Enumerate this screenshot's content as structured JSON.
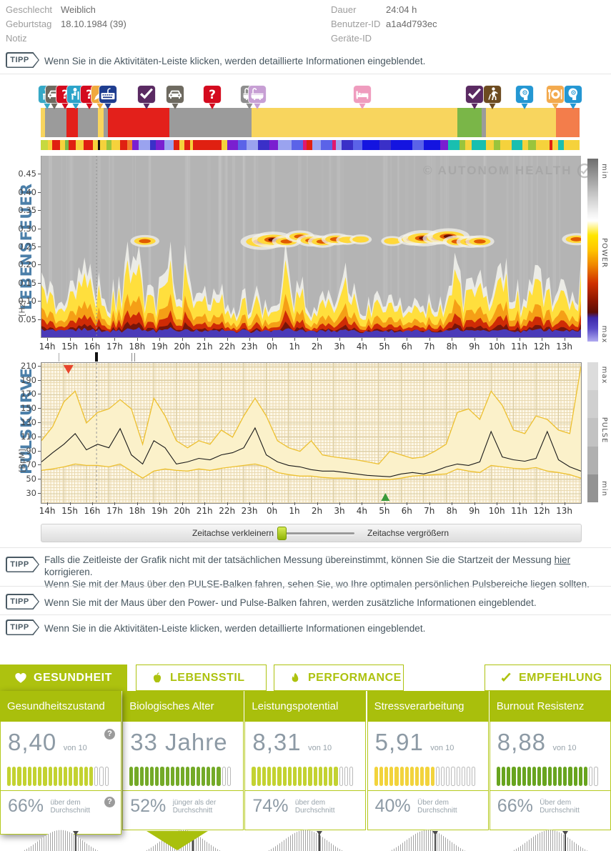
{
  "header": {
    "left": [
      {
        "label": "Geschlecht",
        "value": "Weiblich"
      },
      {
        "label": "Geburtstag",
        "value": "18.10.1984 (39)"
      },
      {
        "label": "Notiz",
        "value": ""
      }
    ],
    "right": [
      {
        "label": "Dauer",
        "value": "24:04 h"
      },
      {
        "label": "Benutzer-ID",
        "value": "a1a4d793ec"
      },
      {
        "label": "Geräte-ID",
        "value": ""
      }
    ]
  },
  "tips": {
    "badge": "TIPP",
    "top": "Wenn Sie in die Aktivitäten-Leiste klicken, werden detaillierte Informationen eingeblendet.",
    "timeline_before": "Falls die Zeitleiste der Grafik nicht mit der tatsächlichen Messung übereinstimmt, können Sie die Startzeit der Messung ",
    "timeline_link": "hier",
    "timeline_after": " korrigieren.",
    "timeline_line2": "Wenn Sie mit der Maus über den PULSE-Balken fahren, sehen Sie, wo Ihre optimalen persönlichen Pulsbereiche liegen sollten.",
    "hover_bars": "Wenn Sie mit der Maus über den Power- und Pulse-Balken fahren, werden zusätzliche Informationen eingeblendet.",
    "activities": "Wenn Sie in die Aktivitäten-Leiste klicken, werden detaillierte Informationen eingeblendet."
  },
  "watermark": "© AUTONOM HEALTH",
  "slider": {
    "shrink_label": "Zeitachse verkleinern",
    "grow_label": "Zeitachse vergrößern"
  },
  "activities": {
    "pins": [
      {
        "icon": "person-desk",
        "color": "#35a8c6",
        "x": -4
      },
      {
        "icon": "car",
        "color": "#6e6a60",
        "x": 6
      },
      {
        "icon": "question",
        "color": "#d40a1e",
        "x": 21
      },
      {
        "icon": "person-desk",
        "color": "#2ba3c9",
        "x": 36
      },
      {
        "icon": "question",
        "color": "#d40a1e",
        "x": 55
      },
      {
        "icon": "pen",
        "color": "#f0a93e",
        "x": 70
      },
      {
        "icon": "keyboard",
        "color": "#1e3d8f",
        "x": 81
      },
      {
        "icon": "relax",
        "color": "#5a2a62",
        "x": 135
      },
      {
        "icon": "car",
        "color": "#6e6a60",
        "x": 175
      },
      {
        "icon": "question",
        "color": "#d40a1e",
        "x": 227
      },
      {
        "icon": "bath",
        "color": "#8d8d8d",
        "x": 279
      },
      {
        "icon": "bath",
        "color": "#c79fd4",
        "x": 290
      },
      {
        "icon": "bed",
        "color": "#ef9cbe",
        "x": 437
      },
      {
        "icon": "relax",
        "color": "#5a2a62",
        "x": 594
      },
      {
        "icon": "hiker",
        "color": "#6d4b20",
        "x": 619
      },
      {
        "icon": "head-gear",
        "color": "#2497d3",
        "x": 664
      },
      {
        "icon": "meal",
        "color": "#f3aa4e",
        "x": 707
      },
      {
        "icon": "head-gear",
        "color": "#2497d3",
        "x": 732
      }
    ],
    "bar_segments": [
      {
        "color": "#f8d55e",
        "w": 0.8
      },
      {
        "color": "#9b9b9b",
        "w": 4.0
      },
      {
        "color": "#e3201b",
        "w": 2.1
      },
      {
        "color": "#9b9b9b",
        "w": 3.7
      },
      {
        "color": "#f8d55e",
        "w": 1.1
      },
      {
        "color": "#9b9b9b",
        "w": 0.7
      },
      {
        "color": "#e3201b",
        "w": 11.5
      },
      {
        "color": "#9b9b9b",
        "w": 15.2
      },
      {
        "color": "#f8d55e",
        "w": 38.1
      },
      {
        "color": "#7ab648",
        "w": 4.6
      },
      {
        "color": "#9b9b9b",
        "w": 0.7
      },
      {
        "color": "#f8d55e",
        "w": 13.0
      },
      {
        "color": "#f37d4b",
        "w": 4.4
      }
    ],
    "strip_segments": [
      [
        "#c6d93f",
        1.2
      ],
      [
        "#f5d23c",
        0.8
      ],
      [
        "#e02011",
        1.4
      ],
      [
        "#f5d23c",
        0.8
      ],
      [
        "#7ab648",
        0.7
      ],
      [
        "#e02011",
        1.2
      ],
      [
        "#f5d23c",
        1.4
      ],
      [
        "#e02011",
        1.6
      ],
      [
        "#f5d23c",
        0.9
      ],
      [
        "#111111",
        0.4
      ],
      [
        "#f5d23c",
        1.1
      ],
      [
        "#9ac43c",
        0.9
      ],
      [
        "#f5d23c",
        1.5
      ],
      [
        "#e02011",
        1.3
      ],
      [
        "#f07f2e",
        0.8
      ],
      [
        "#7a1fd0",
        1.2
      ],
      [
        "#9aa3ef",
        2.0
      ],
      [
        "#3a30c8",
        1.0
      ],
      [
        "#7a1fd0",
        1.5
      ],
      [
        "#9aa3ef",
        1.6
      ],
      [
        "#e02011",
        1.0
      ],
      [
        "#f5d23c",
        0.8
      ],
      [
        "#e02011",
        1.0
      ],
      [
        "#f5d23c",
        0.6
      ],
      [
        "#e02011",
        5.0
      ],
      [
        "#f5d23c",
        1.0
      ],
      [
        "#7a1fd0",
        1.8
      ],
      [
        "#5b63e8",
        1.5
      ],
      [
        "#9aa3ef",
        2.0
      ],
      [
        "#3a30c8",
        2.0
      ],
      [
        "#7a1fd0",
        1.5
      ],
      [
        "#9aa3ef",
        2.4
      ],
      [
        "#5b63e8",
        2.0
      ],
      [
        "#e0186e",
        0.7
      ],
      [
        "#e02011",
        1.0
      ],
      [
        "#9aa3ef",
        1.5
      ],
      [
        "#5b63e8",
        2.0
      ],
      [
        "#e0186e",
        0.6
      ],
      [
        "#9aa3ef",
        1.0
      ],
      [
        "#3a30c8",
        2.0
      ],
      [
        "#5b63e8",
        1.6
      ],
      [
        "#1414e0",
        3.0
      ],
      [
        "#3a30c8",
        2.0
      ],
      [
        "#1414e0",
        3.8
      ],
      [
        "#5b63e8",
        2.0
      ],
      [
        "#1414e0",
        2.8
      ],
      [
        "#7a1fd0",
        1.4
      ],
      [
        "#19bfb0",
        2.0
      ],
      [
        "#9ac43c",
        1.0
      ],
      [
        "#f5d23c",
        1.2
      ],
      [
        "#19bfb0",
        2.4
      ],
      [
        "#f5d23c",
        1.4
      ],
      [
        "#9ac43c",
        1.2
      ],
      [
        "#f5d23c",
        2.0
      ],
      [
        "#19bfb0",
        1.8
      ],
      [
        "#f5d23c",
        1.0
      ],
      [
        "#9ac43c",
        1.4
      ],
      [
        "#f5d23c",
        2.4
      ],
      [
        "#e02011",
        0.5
      ],
      [
        "#f5d23c",
        1.0
      ],
      [
        "#19bfb0",
        1.0
      ],
      [
        "#f5d23c",
        2.8
      ]
    ]
  },
  "tabs": [
    {
      "label": "GESUNDHEIT",
      "icon": "heart",
      "active": true
    },
    {
      "label": "LEBENSSTIL",
      "icon": "apple",
      "active": false
    },
    {
      "label": "PERFORMANCE",
      "icon": "flame",
      "active": false
    },
    {
      "label": "EMPFEHLUNG",
      "icon": "check",
      "active": false
    }
  ],
  "cards": [
    {
      "title": "Gesundheitszustand",
      "value": "8,40",
      "unit": "von 10",
      "bars_total": 20,
      "bars_filled": 17,
      "bar_color": "#c3d231",
      "percent": "66%",
      "percent_label_1": "über dem",
      "percent_label_2": "Durchschnitt",
      "marker_pct": 63,
      "active": true,
      "help_icons": true
    },
    {
      "title": "Biologisches Alter",
      "value": "33 Jahre",
      "unit": "",
      "bars_total": 20,
      "bars_filled": 18,
      "bar_color": "#74aa28",
      "percent": "52%",
      "percent_label_1": "jünger als der",
      "percent_label_2": "Durchschnitt",
      "marker_pct": 58,
      "active": false,
      "help_icons": false
    },
    {
      "title": "Leistungspotential",
      "value": "8,31",
      "unit": "von 10",
      "bars_total": 20,
      "bars_filled": 17,
      "bar_color": "#c3d231",
      "percent": "74%",
      "percent_label_1": "über dem",
      "percent_label_2": "Durchschnitt",
      "marker_pct": 62,
      "active": false,
      "help_icons": false
    },
    {
      "title": "Stressverarbeitung",
      "value": "5,91",
      "unit": "von 10",
      "bars_total": 20,
      "bars_filled": 12,
      "bar_color": "#f2d33c",
      "percent": "40%",
      "percent_label_1": "Über dem",
      "percent_label_2": "Durchschnitt",
      "marker_pct": 56,
      "active": false,
      "help_icons": false
    },
    {
      "title": "Burnout Resistenz",
      "value": "8,88",
      "unit": "von 10",
      "bars_total": 20,
      "bars_filled": 18,
      "bar_color": "#68a41f",
      "percent": "66%",
      "percent_label_1": "Über dem",
      "percent_label_2": "Durchschnitt",
      "marker_pct": 63,
      "active": false,
      "help_icons": false
    }
  ],
  "chart_data": [
    {
      "type": "heatmap",
      "title": "LEBENSFEUER",
      "ylabel": "[Hz]",
      "yticks": [
        0.45,
        0.4,
        0.35,
        0.3,
        0.25,
        0.2,
        0.15,
        0.1,
        0.05
      ],
      "ylim": [
        0,
        0.5
      ],
      "xtick_labels": [
        "14h",
        "15h",
        "16h",
        "17h",
        "18h",
        "19h",
        "20h",
        "21h",
        "22h",
        "23h",
        "0h",
        "1h",
        "2h",
        "3h",
        "4h",
        "5h",
        "6h",
        "7h",
        "8h",
        "9h",
        "10h",
        "11h",
        "12h",
        "13h"
      ],
      "background": "#b4b4b4",
      "colorbar": {
        "top_label": "min",
        "mid_label": "POWER",
        "bottom_label": "max",
        "gradient": [
          "#6e6e6e 0%",
          "#c8c8c8 20%",
          "#f2f2f2 30%",
          "#ffffff 34%",
          "#ffe600 42%",
          "#ffc400 50%",
          "#f08800 58%",
          "#d03000 68%",
          "#8a1500 78%",
          "#5c0d06 84%",
          "#3c28aa 87%",
          "#5a4cc8 93%",
          "#b0aaf0 100%"
        ]
      },
      "sample_step_h": 0.5,
      "low_band_intensity": [
        0.26,
        0.2,
        0.17,
        0.24,
        0.3,
        0.22,
        0.18,
        0.26,
        0.32,
        0.24,
        0.2,
        0.27,
        0.22,
        0.3,
        0.24,
        0.17,
        0.21,
        0.14,
        0.17,
        0.21,
        0.15,
        0.12,
        0.19,
        0.24,
        0.14,
        0.21,
        0.17,
        0.24,
        0.19,
        0.14,
        0.21,
        0.17,
        0.19,
        0.24,
        0.17,
        0.14,
        0.24,
        0.29,
        0.21,
        0.27,
        0.19,
        0.29,
        0.24,
        0.19,
        0.27,
        0.21,
        0.24,
        0.19,
        0.23
      ],
      "mid_band": {
        "freq_hz": 0.27,
        "clusters": [
          {
            "hour": 18.6,
            "s": 1
          },
          {
            "hour": 23.8,
            "s": 2
          },
          {
            "hour": 0.3,
            "s": 2
          },
          {
            "hour": 0.9,
            "s": 1
          },
          {
            "hour": 1.5,
            "s": 1
          },
          {
            "hour": 2.0,
            "s": 1
          },
          {
            "hour": 2.5,
            "s": 1
          },
          {
            "hour": 3.1,
            "s": 1
          },
          {
            "hour": 3.6,
            "s": 0.5
          },
          {
            "hour": 4.2,
            "s": 0.5
          },
          {
            "hour": 5.6,
            "s": 0.5
          },
          {
            "hour": 6.5,
            "s": 1
          },
          {
            "hour": 7.0,
            "s": 2
          },
          {
            "hour": 7.6,
            "s": 1
          },
          {
            "hour": 8.1,
            "s": 2
          },
          {
            "hour": 8.5,
            "s": 1
          },
          {
            "hour": 9.1,
            "s": 1
          },
          {
            "hour": 9.5,
            "s": 1
          },
          {
            "hour": 13.8,
            "s": 1
          }
        ]
      },
      "dashed_line_hour": 16.45
    },
    {
      "type": "line",
      "title": "PULSKURVE",
      "ylabel": "[BpM]",
      "yticks": [
        210,
        190,
        170,
        150,
        130,
        110,
        90,
        70,
        50,
        30
      ],
      "ylim": [
        25,
        215
      ],
      "xtick_labels": [
        "14h",
        "15h",
        "16h",
        "17h",
        "18h",
        "19h",
        "20h",
        "21h",
        "22h",
        "23h",
        "0h",
        "1h",
        "2h",
        "3h",
        "4h",
        "5h",
        "6h",
        "7h",
        "8h",
        "9h",
        "10h",
        "11h",
        "12h",
        "13h"
      ],
      "sample_step_h": 0.5,
      "band_fill": "#fbf1ca",
      "series": [
        {
          "name": "max",
          "color": "#edc02f",
          "values": [
            105,
            125,
            160,
            175,
            130,
            145,
            150,
            163,
            150,
            100,
            165,
            140,
            105,
            95,
            105,
            100,
            120,
            110,
            140,
            165,
            140,
            105,
            95,
            90,
            105,
            85,
            82,
            80,
            78,
            75,
            72,
            90,
            85,
            80,
            82,
            90,
            100,
            145,
            150,
            135,
            175,
            155,
            120,
            115,
            140,
            135,
            120,
            115,
            210
          ]
        },
        {
          "name": "mean",
          "color": "#1a1a1a",
          "values": [
            75,
            88,
            100,
            115,
            92,
            100,
            95,
            122,
            85,
            72,
            105,
            95,
            72,
            75,
            80,
            78,
            85,
            88,
            95,
            123,
            85,
            75,
            70,
            68,
            64,
            62,
            62,
            60,
            58,
            56,
            55,
            54,
            58,
            60,
            58,
            62,
            68,
            72,
            70,
            75,
            118,
            82,
            78,
            76,
            80,
            118,
            78,
            68,
            62
          ]
        },
        {
          "name": "min",
          "color": "#edc02f",
          "values": [
            63,
            65,
            68,
            72,
            70,
            70,
            68,
            72,
            62,
            52,
            62,
            65,
            63,
            62,
            65,
            63,
            66,
            68,
            70,
            72,
            68,
            60,
            57,
            55,
            55,
            53,
            52,
            52,
            51,
            50,
            50,
            50,
            52,
            55,
            56,
            57,
            58,
            65,
            62,
            60,
            70,
            68,
            66,
            65,
            67,
            62,
            60,
            57,
            52
          ]
        }
      ],
      "markers": {
        "red_triangle_hour": 15.2,
        "green_triangle_hour": 5.3,
        "dashed_line_hour": 16.45
      },
      "axis_marks": [
        {
          "hour": 14.8,
          "style": "thin"
        },
        {
          "hour": 16.4,
          "style": "thick"
        },
        {
          "hour": 18.05,
          "style": "double"
        }
      ],
      "colorbar": {
        "top_label": "max",
        "mid_label": "PULSE",
        "bottom_label": "min",
        "segments": [
          "#dcdcdc",
          "#cfcfcf",
          "#c2c2c2",
          "#b0b0b0",
          "#939393"
        ]
      }
    }
  ]
}
